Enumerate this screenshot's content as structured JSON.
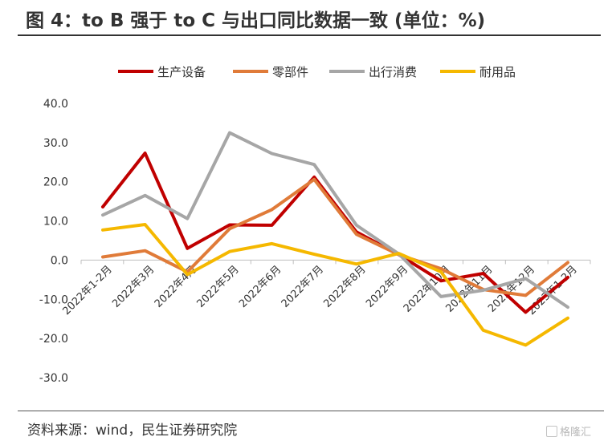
{
  "title": "图 4：to B 强于 to C 与出口同比数据一致 (单位：%)",
  "source": "资料来源：wind，民生证券研究院",
  "watermark": "格隆汇",
  "chart_data": {
    "type": "line",
    "title": "",
    "xlabel": "",
    "ylabel": "",
    "ylim": [
      -30,
      40
    ],
    "yticks": [
      -30,
      -20,
      -10,
      0,
      10,
      20,
      30,
      40
    ],
    "ytick_labels": [
      "-30.0",
      "-20.0",
      "-10.0",
      "0.0",
      "10.0",
      "20.0",
      "30.0",
      "40.0"
    ],
    "grid": false,
    "legend": "top",
    "categories": [
      "2022年1-2月",
      "2022年3月",
      "2022年4月",
      "2022年5月",
      "2022年6月",
      "2022年7月",
      "2022年8月",
      "2022年9月",
      "2022年10月",
      "2022年11月",
      "2022年12月",
      "2023年1-2月"
    ],
    "series": [
      {
        "name": "生产设备",
        "color": "#c00000",
        "values": [
          13.6,
          27.3,
          3.0,
          9.0,
          8.9,
          21.2,
          7.2,
          1.4,
          -5.3,
          -3.4,
          -13.3,
          -4.4
        ]
      },
      {
        "name": "零部件",
        "color": "#e07b39",
        "values": [
          0.8,
          2.4,
          -3.0,
          8.0,
          12.9,
          20.6,
          6.6,
          1.4,
          -2.2,
          -7.5,
          -9.0,
          -0.6
        ]
      },
      {
        "name": "出行消费",
        "color": "#a6a6a6",
        "values": [
          11.5,
          16.5,
          10.6,
          32.5,
          27.2,
          24.4,
          8.9,
          1.6,
          -9.3,
          -7.7,
          -4.7,
          -12.0
        ]
      },
      {
        "name": "耐用品",
        "color": "#f5b800",
        "values": [
          7.7,
          9.1,
          -3.7,
          2.2,
          4.2,
          1.5,
          -1.0,
          1.7,
          -3.0,
          -17.9,
          -21.7,
          -14.8
        ]
      }
    ]
  }
}
